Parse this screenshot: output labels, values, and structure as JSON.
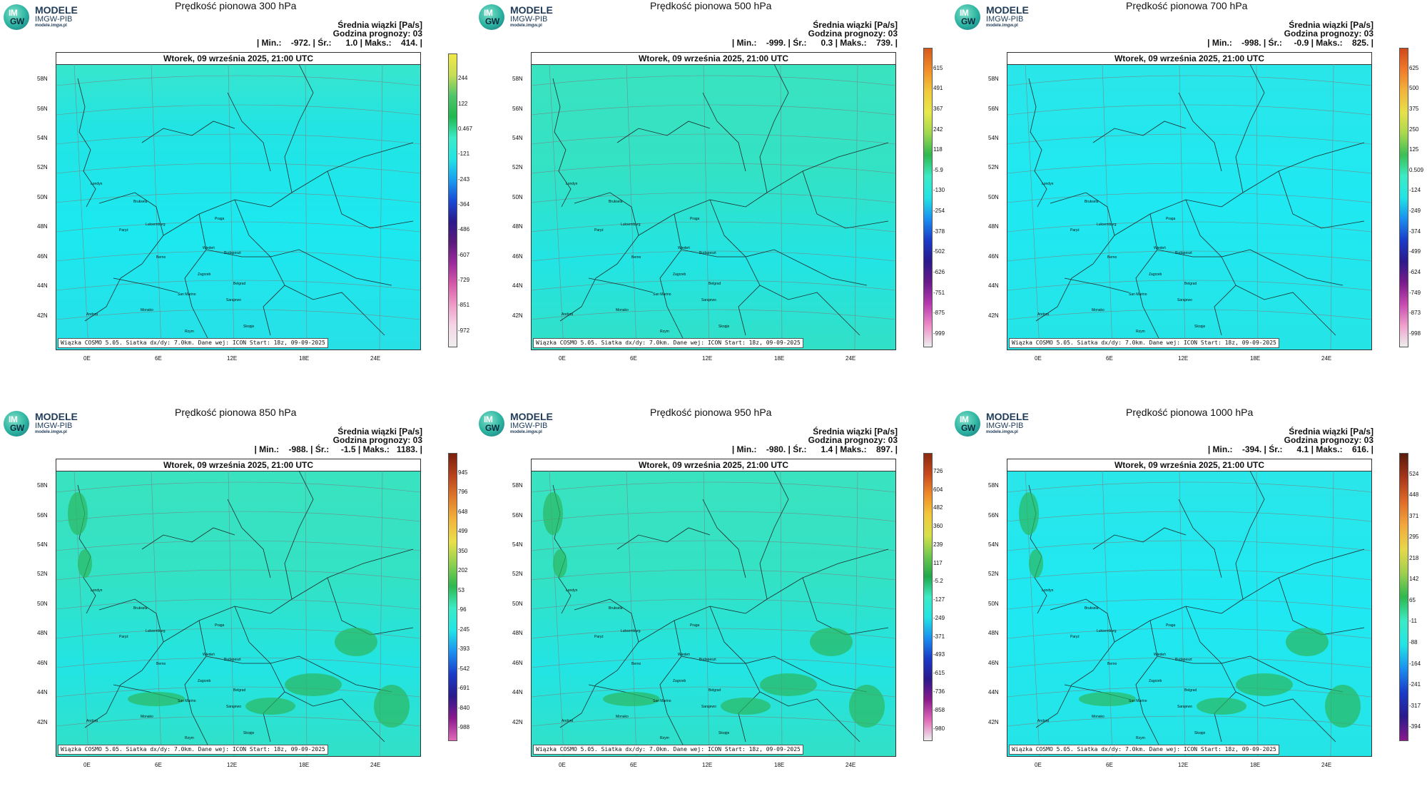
{
  "logo": {
    "line1": "MODELE",
    "line2": "IMGW-PIB",
    "line3": "modele.imgw.pl",
    "mark_top": "IM",
    "mark_bottom": "GW"
  },
  "common": {
    "units": "Średnia wiązki [Pa/s]",
    "forecast_hour": "Godzina prognozy: 03",
    "date": "Wtorek, 09 września 2025, 21:00 UTC",
    "footer": "Wiązka COSMO 5.05. Siatka dx/dy: 7.0km. Dane wej: ICON Start: 18z, 09-09-2025",
    "lat_labels": [
      "58N",
      "56N",
      "54N",
      "52N",
      "50N",
      "48N",
      "46N",
      "44N",
      "42N"
    ],
    "lon_labels": [
      "0E",
      "6E",
      "12E",
      "18E",
      "24E"
    ]
  },
  "panels": [
    {
      "title": "Prędkość pionowa 300 hPa",
      "stats": "| Min.:    -972. | Śr.:      1.0 | Maks.:    414. |",
      "colorbar": [
        "244",
        "122",
        "0.467",
        "-121",
        "-243",
        "-364",
        "-486",
        "-607",
        "-729",
        "-851",
        "-972"
      ],
      "top_color": "#f2e84a"
    },
    {
      "title": "Prędkość pionowa 500 hPa",
      "stats": "| Min.:    -999. | Śr.:      0.3 | Maks.:    739. |",
      "colorbar": [
        "615",
        "491",
        "367",
        "242",
        "118",
        "-5.9",
        "-130",
        "-254",
        "-378",
        "-502",
        "-626",
        "-751",
        "-875",
        "-999"
      ],
      "top_color": "#d65a1c"
    },
    {
      "title": "Prędkość pionowa 700 hPa",
      "stats": "| Min.:    -998. | Śr.:     -0.9 | Maks.:    825. |",
      "colorbar": [
        "625",
        "500",
        "375",
        "250",
        "125",
        "0.509",
        "-124",
        "-249",
        "-374",
        "-499",
        "-624",
        "-749",
        "-873",
        "-998"
      ],
      "top_color": "#d04a1a"
    },
    {
      "title": "Prędkość pionowa 850 hPa",
      "stats": "| Min.:    -988. | Śr.:     -1.5 | Maks.:   1183. |",
      "colorbar": [
        "945",
        "796",
        "648",
        "499",
        "350",
        "202",
        "53",
        "-96",
        "-245",
        "-393",
        "-542",
        "-691",
        "-840",
        "-988"
      ],
      "top_color": "#7a1f0c"
    },
    {
      "title": "Prędkość pionowa 950 hPa",
      "stats": "| Min.:    -980. | Śr.:      1.4 | Maks.:    897. |",
      "colorbar": [
        "726",
        "604",
        "482",
        "360",
        "239",
        "117",
        "-5.2",
        "-127",
        "-249",
        "-371",
        "-493",
        "-615",
        "-736",
        "-858",
        "-980"
      ],
      "top_color": "#8a2a10"
    },
    {
      "title": "Prędkość pionowa 1000 hPa",
      "stats": "| Min.:    -394. | Śr.:      4.1 | Maks.:    616. |",
      "colorbar": [
        "524",
        "448",
        "371",
        "295",
        "218",
        "142",
        "65",
        "-11",
        "-88",
        "-164",
        "-241",
        "-317",
        "-394"
      ],
      "top_color": "#5a1a0c"
    }
  ],
  "cities": [
    "Londyn",
    "Bruksela",
    "Paryż",
    "Luksemburg",
    "Praga",
    "Wiedeń",
    "Budapeszt",
    "Berno",
    "Zagrzeb",
    "Belgrad",
    "San Marino",
    "Monako",
    "Sarajewo",
    "Andora",
    "Skopje",
    "Rzym"
  ]
}
